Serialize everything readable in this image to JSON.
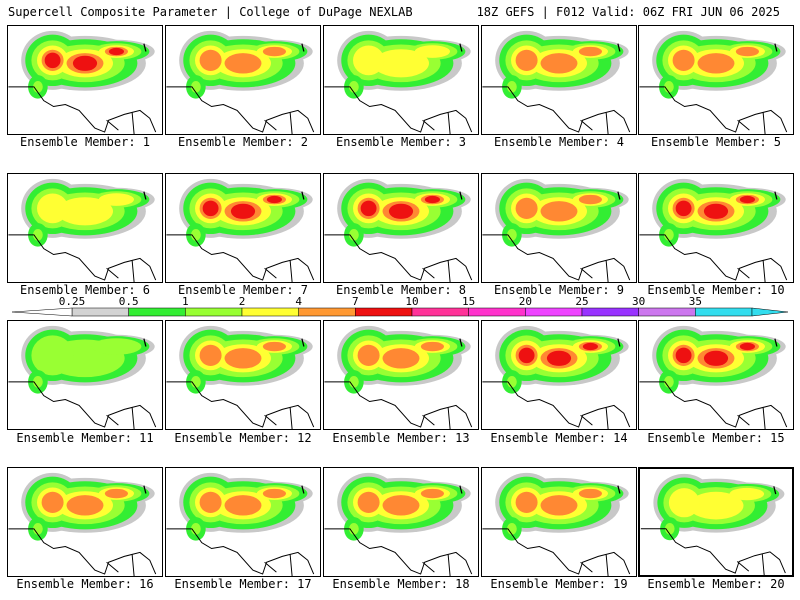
{
  "header": {
    "title": "Supercell Composite Parameter | College of DuPage NEXLAB",
    "run_info": "18Z GEFS | F012 Valid: 06Z FRI JUN 06 2025"
  },
  "colors": {
    "colorbar": [
      "#d3d3d3",
      "#33ee33",
      "#99ff33",
      "#ffff33",
      "#ff9933",
      "#ee1111",
      "#ff3399",
      "#ff33cc",
      "#ee44ff",
      "#9933ff",
      "#cc77ee",
      "#33ddee"
    ],
    "tiers": {
      "gray": "#c8c8c8",
      "green": "#33ee33",
      "lightgreen": "#99ff33",
      "yellow": "#ffff33",
      "orange": "#ff8833",
      "red": "#ee1111"
    }
  },
  "colorbar": {
    "labels": [
      "0.25",
      "0.5",
      "1",
      "2",
      "4",
      "7",
      "10",
      "15",
      "20",
      "25",
      "30",
      "35"
    ]
  },
  "members": [
    {
      "label": "Ensemble Member: 1",
      "max": 10,
      "selected": false
    },
    {
      "label": "Ensemble Member: 2",
      "max": 7,
      "selected": false
    },
    {
      "label": "Ensemble Member: 3",
      "max": 4,
      "selected": false
    },
    {
      "label": "Ensemble Member: 4",
      "max": 7,
      "selected": false
    },
    {
      "label": "Ensemble Member: 5",
      "max": 7,
      "selected": false
    },
    {
      "label": "Ensemble Member: 6",
      "max": 4,
      "selected": false
    },
    {
      "label": "Ensemble Member: 7",
      "max": 10,
      "selected": false
    },
    {
      "label": "Ensemble Member: 8",
      "max": 10,
      "selected": false
    },
    {
      "label": "Ensemble Member: 9",
      "max": 7,
      "selected": false
    },
    {
      "label": "Ensemble Member: 10",
      "max": 10,
      "selected": false
    },
    {
      "label": "Ensemble Member: 11",
      "max": 2,
      "selected": false
    },
    {
      "label": "Ensemble Member: 12",
      "max": 7,
      "selected": false
    },
    {
      "label": "Ensemble Member: 13",
      "max": 7,
      "selected": false
    },
    {
      "label": "Ensemble Member: 14",
      "max": 10,
      "selected": false
    },
    {
      "label": "Ensemble Member: 15",
      "max": 10,
      "selected": false
    },
    {
      "label": "Ensemble Member: 16",
      "max": 7,
      "selected": false
    },
    {
      "label": "Ensemble Member: 17",
      "max": 7,
      "selected": false
    },
    {
      "label": "Ensemble Member: 18",
      "max": 7,
      "selected": false
    },
    {
      "label": "Ensemble Member: 19",
      "max": 7,
      "selected": false
    },
    {
      "label": "Ensemble Member: 20",
      "max": 4,
      "selected": true
    }
  ]
}
